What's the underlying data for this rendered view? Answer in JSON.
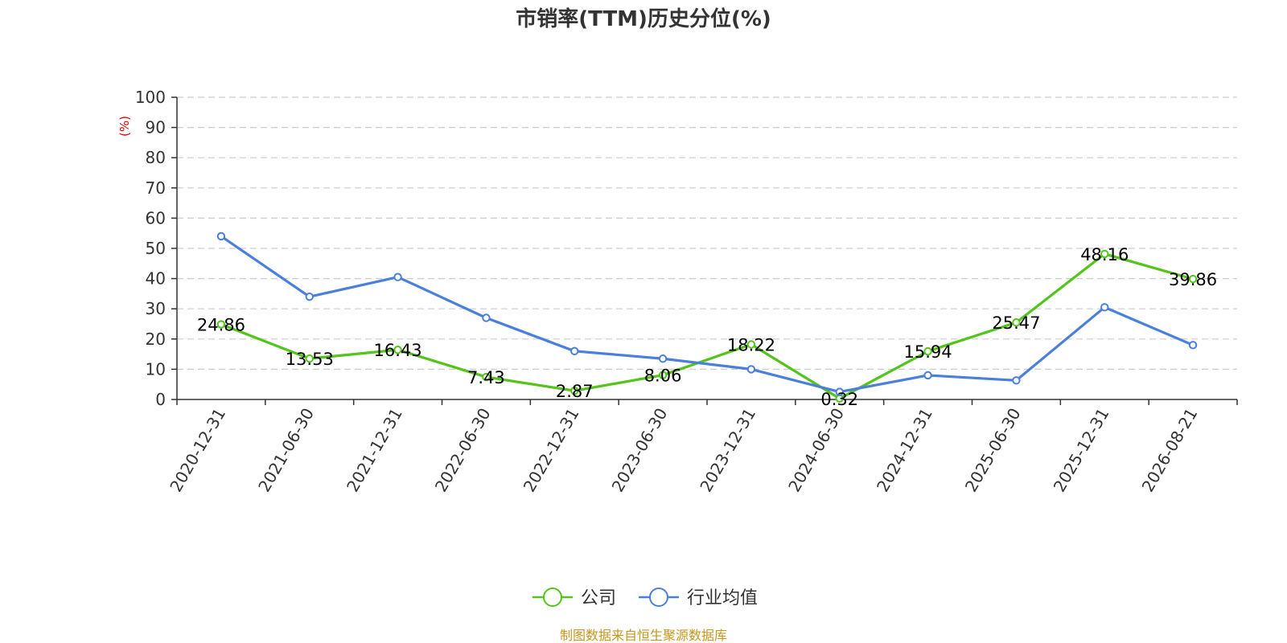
{
  "chart_data": {
    "type": "line",
    "title": "市销率(TTM)历史分位(%)",
    "ylabel": "(%)",
    "ylim": [
      0,
      100
    ],
    "yticks": [
      0,
      10,
      20,
      30,
      40,
      50,
      60,
      70,
      80,
      90,
      100
    ],
    "categories": [
      "2020-12-31",
      "2021-06-30",
      "2021-12-31",
      "2022-06-30",
      "2022-12-31",
      "2023-06-30",
      "2023-12-31",
      "2024-06-30",
      "2024-12-31",
      "2025-06-30",
      "2025-12-31",
      "2026-08-21"
    ],
    "series": [
      {
        "name": "公司",
        "color": "#52c41a",
        "values": [
          24.86,
          13.53,
          16.43,
          7.43,
          2.87,
          8.06,
          18.22,
          0.32,
          15.94,
          25.47,
          48.16,
          39.86
        ],
        "labels": [
          "24.86",
          "13.53",
          "16.43",
          "7.43",
          "2.87",
          "8.06",
          "18.22",
          "0.32",
          "15.94",
          "25.47",
          "48.16",
          "39.86"
        ]
      },
      {
        "name": "行业均值",
        "color": "#4a7fdc",
        "values": [
          54,
          34,
          40.5,
          27,
          16,
          13.5,
          10,
          2.5,
          8,
          6.3,
          30.5,
          18
        ]
      }
    ],
    "grid": true,
    "legend": "bottom-center"
  },
  "source": "制图数据来自恒生聚源数据库"
}
